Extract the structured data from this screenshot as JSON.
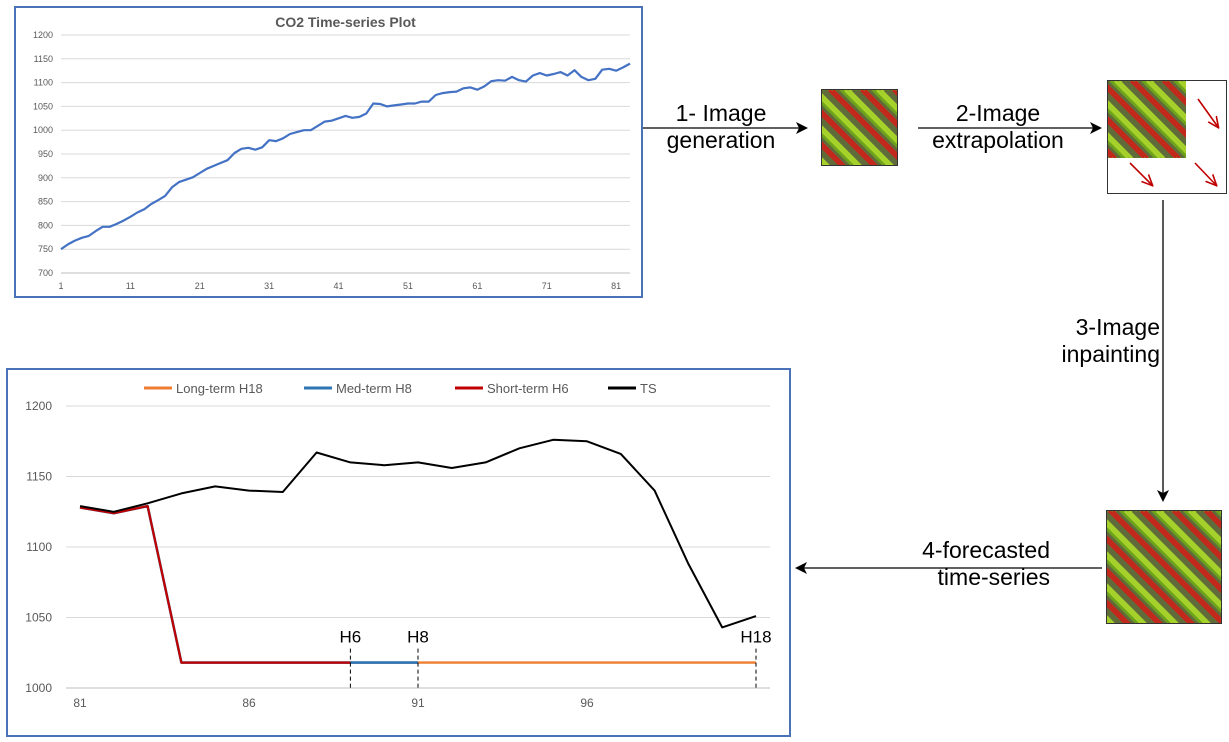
{
  "steps": {
    "generation_line1": "1- Image",
    "generation_line2": "generation",
    "extrapolation_line1": "2-Image",
    "extrapolation_line2": "extrapolation",
    "inpainting_line1": "3-Image",
    "inpainting_line2": "inpainting",
    "forecast_line1": "4-forecasted",
    "forecast_line2": "time-series"
  },
  "colors": {
    "frame": "#4a72b8",
    "co2_line": "#4472c4",
    "long_term": "#ed7d31",
    "med_term": "#2e75b6",
    "short_term": "#c00000",
    "ts": "#000000",
    "tile_green": "#6fa21c",
    "tile_olive": "#5f6b3a",
    "tile_red": "#c4281c",
    "tile_lime": "#a6d12a",
    "arrow_red": "#c00000"
  },
  "chart_data": [
    {
      "type": "line",
      "title": "CO2 Time-series Plot",
      "xlabel": "",
      "ylabel": "",
      "x_ticks": [
        1,
        11,
        21,
        31,
        41,
        51,
        61,
        71,
        81
      ],
      "y_ticks": [
        700,
        750,
        800,
        850,
        900,
        950,
        1000,
        1050,
        1100,
        1150,
        1200
      ],
      "ylim": [
        700,
        1200
      ],
      "xlim": [
        1,
        83
      ],
      "grid": true,
      "series": [
        {
          "values": [
            750,
            760,
            768,
            774,
            778,
            788,
            797,
            797,
            803,
            810,
            818,
            827,
            834,
            845,
            853,
            862,
            880,
            891,
            896,
            901,
            910,
            919,
            925,
            931,
            937,
            952,
            961,
            963,
            959,
            964,
            979,
            977,
            983,
            992,
            996,
            1000,
            1000,
            1009,
            1018,
            1020,
            1025,
            1030,
            1026,
            1028,
            1035,
            1056,
            1055,
            1050,
            1052,
            1054,
            1056,
            1056,
            1060,
            1060,
            1074,
            1078,
            1080,
            1081,
            1088,
            1090,
            1085,
            1092,
            1103,
            1105,
            1104,
            1112,
            1105,
            1102,
            1115,
            1120,
            1115,
            1118,
            1122,
            1115,
            1126,
            1112,
            1105,
            1108,
            1127,
            1129,
            1125,
            1132,
            1140
          ]
        }
      ]
    },
    {
      "type": "line",
      "title": "",
      "xlabel": "",
      "ylabel": "",
      "x_ticks": [
        81,
        86,
        91,
        96
      ],
      "y_ticks": [
        1000,
        1050,
        1100,
        1150,
        1200
      ],
      "ylim": [
        1000,
        1200
      ],
      "xlim": [
        81,
        101
      ],
      "grid": true,
      "legend_placement": "top",
      "series": [
        {
          "name": "Long-term H18",
          "x": [
            81,
            82,
            83,
            84,
            85,
            86,
            87,
            88,
            89,
            90,
            91,
            92,
            93,
            94,
            95,
            96,
            97,
            98,
            99,
            100,
            101
          ],
          "values": [
            1128,
            1124,
            1129,
            1018,
            1018,
            1018,
            1018,
            1018,
            1018,
            1018,
            1018,
            1018,
            1018,
            1018,
            1018,
            1018,
            1018,
            1018,
            1018,
            1018,
            1018
          ]
        },
        {
          "name": "Med-term H8",
          "x": [
            81,
            82,
            83,
            84,
            85,
            86,
            87,
            88,
            89,
            90,
            91
          ],
          "values": [
            1128,
            1124,
            1129,
            1018,
            1018,
            1018,
            1018,
            1018,
            1018,
            1018,
            1018
          ]
        },
        {
          "name": "Short-term H6",
          "x": [
            81,
            82,
            83,
            84,
            85,
            86,
            87,
            88,
            89
          ],
          "values": [
            1128,
            1124,
            1129,
            1018,
            1018,
            1018,
            1018,
            1018,
            1018
          ]
        },
        {
          "name": "TS",
          "x": [
            81,
            82,
            83,
            84,
            85,
            86,
            87,
            88,
            89,
            90,
            91,
            92,
            93,
            94,
            95,
            96,
            97,
            98,
            99,
            100,
            101
          ],
          "values": [
            1129,
            1125,
            1131,
            1138,
            1143,
            1140,
            1139,
            1167,
            1160,
            1158,
            1160,
            1156,
            1160,
            1170,
            1176,
            1175,
            1166,
            1140,
            1088,
            1043,
            1051
          ]
        }
      ],
      "annotations": [
        {
          "label": "H6",
          "x": 89
        },
        {
          "label": "H8",
          "x": 91
        },
        {
          "label": "H18",
          "x": 101
        }
      ]
    }
  ]
}
